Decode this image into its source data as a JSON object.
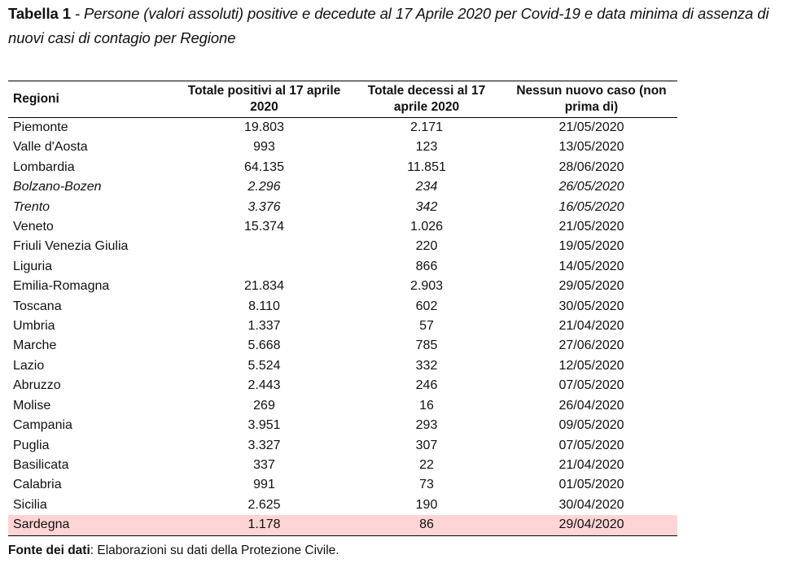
{
  "title": {
    "label": "Tabella 1",
    "text": "- Persone (valori assoluti) positive e decedute al 17 Aprile 2020 per Covid-19 e data minima di assenza di nuovi casi di contagio per Regione"
  },
  "table": {
    "headers": [
      "Regioni",
      "Totale positivi al 17 aprile 2020",
      "Totale decessi al 17 aprile 2020",
      "Nessun nuovo caso (non prima di)"
    ],
    "rows": [
      {
        "region": "Piemonte",
        "positivi": "19.803",
        "decessi": "2.171",
        "data": "21/05/2020",
        "italic": false
      },
      {
        "region": "Valle d'Aosta",
        "positivi": "993",
        "decessi": "123",
        "data": "13/05/2020",
        "italic": false
      },
      {
        "region": "Lombardia",
        "positivi": "64.135",
        "decessi": "11.851",
        "data": "28/06/2020",
        "italic": false
      },
      {
        "region": "Bolzano-Bozen",
        "positivi": "2.296",
        "decessi": "234",
        "data": "26/05/2020",
        "italic": true
      },
      {
        "region": "Trento",
        "positivi": "3.376",
        "decessi": "342",
        "data": "16/05/2020",
        "italic": true
      },
      {
        "region": "Veneto",
        "positivi": "15.374",
        "decessi": "1.026",
        "data": "21/05/2020",
        "italic": false
      },
      {
        "region": "Friuli Venezia Giulia",
        "positivi": "",
        "decessi": "220",
        "data": "19/05/2020",
        "italic": false
      },
      {
        "region": "Liguria",
        "positivi": "",
        "decessi": "866",
        "data": "14/05/2020",
        "italic": false
      },
      {
        "region": "Emilia-Romagna",
        "positivi": "21.834",
        "decessi": "2.903",
        "data": "29/05/2020",
        "italic": false
      },
      {
        "region": "Toscana",
        "positivi": "8.110",
        "decessi": "602",
        "data": "30/05/2020",
        "italic": false
      },
      {
        "region": "Umbria",
        "positivi": "1.337",
        "decessi": "57",
        "data": "21/04/2020",
        "italic": false
      },
      {
        "region": "Marche",
        "positivi": "5.668",
        "decessi": "785",
        "data": "27/06/2020",
        "italic": false
      },
      {
        "region": "Lazio",
        "positivi": "5.524",
        "decessi": "332",
        "data": "12/05/2020",
        "italic": false
      },
      {
        "region": "Abruzzo",
        "positivi": "2.443",
        "decessi": "246",
        "data": "07/05/2020",
        "italic": false
      },
      {
        "region": "Molise",
        "positivi": "269",
        "decessi": "16",
        "data": "26/04/2020",
        "italic": false
      },
      {
        "region": "Campania",
        "positivi": "3.951",
        "decessi": "293",
        "data": "09/05/2020",
        "italic": false
      },
      {
        "region": "Puglia",
        "positivi": "3.327",
        "decessi": "307",
        "data": "07/05/2020",
        "italic": false
      },
      {
        "region": "Basilicata",
        "positivi": "337",
        "decessi": "22",
        "data": "21/04/2020",
        "italic": false
      },
      {
        "region": "Calabria",
        "positivi": "991",
        "decessi": "73",
        "data": "01/05/2020",
        "italic": false
      },
      {
        "region": "Sicilia",
        "positivi": "2.625",
        "decessi": "190",
        "data": "30/04/2020",
        "italic": false
      },
      {
        "region": "Sardegna",
        "positivi": "1.178",
        "decessi": "86",
        "data": "29/04/2020",
        "italic": false,
        "highlighted": true
      }
    ]
  },
  "source": {
    "label": "Fonte dei dati",
    "text": ": Elaborazioni su dati della Protezione Civile."
  },
  "colors": {
    "highlight": "#ffa0a0"
  }
}
